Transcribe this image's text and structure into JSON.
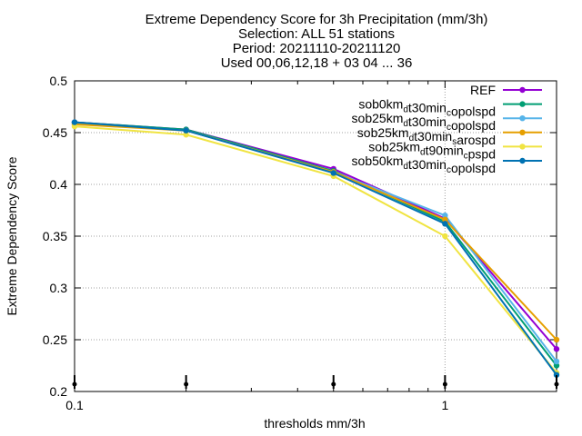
{
  "chart_data": {
    "type": "line",
    "title_lines": [
      "Extreme Dependency Score  for 3h Precipitation (mm/3h)",
      "Selection: ALL      51 stations",
      "Period: 20211110-20211120",
      "Used 00,06,12,18 + 03 04 ... 36"
    ],
    "xlabel": "thresholds mm/3h",
    "ylabel": "Extreme Dependency Score",
    "x_scale": "log",
    "xlim": [
      0.1,
      2
    ],
    "ylim": [
      0.2,
      0.5
    ],
    "x_ticks": [
      {
        "value": 0.1,
        "label": "0.1"
      },
      {
        "value": 1,
        "label": "1"
      }
    ],
    "y_ticks": [
      {
        "value": 0.2,
        "label": "0.2"
      },
      {
        "value": 0.25,
        "label": "0.25"
      },
      {
        "value": 0.3,
        "label": "0.3"
      },
      {
        "value": 0.35,
        "label": "0.35"
      },
      {
        "value": 0.4,
        "label": "0.4"
      },
      {
        "value": 0.45,
        "label": "0.45"
      },
      {
        "value": 0.5,
        "label": "0.5"
      }
    ],
    "grid": true,
    "legend_position": "top-right",
    "x": [
      0.1,
      0.2,
      0.5,
      1,
      2
    ],
    "series": [
      {
        "name": "REF",
        "name_parts": [
          [
            "REF",
            ""
          ]
        ],
        "color": "#9400d3",
        "values": [
          0.46,
          0.453,
          0.415,
          0.367,
          0.241
        ]
      },
      {
        "name": "sob0km_d t30min_c opolspd",
        "name_parts": [
          [
            "sob0km",
            ""
          ],
          [
            "d",
            "sub"
          ],
          [
            "t30min",
            ""
          ],
          [
            "c",
            "sub"
          ],
          [
            "opolspd",
            ""
          ]
        ],
        "color": "#009e73",
        "values": [
          0.46,
          0.453,
          0.413,
          0.364,
          0.225
        ]
      },
      {
        "name": "sob25km_d t30min_c opolspd",
        "name_parts": [
          [
            "sob25km",
            ""
          ],
          [
            "d",
            "sub"
          ],
          [
            "t30min",
            ""
          ],
          [
            "c",
            "sub"
          ],
          [
            "opolspd",
            ""
          ]
        ],
        "color": "#56b4e9",
        "values": [
          0.459,
          0.452,
          0.412,
          0.37,
          0.229
        ]
      },
      {
        "name": "sob25km_d t30min_s arospd",
        "name_parts": [
          [
            "sob25km",
            ""
          ],
          [
            "d",
            "sub"
          ],
          [
            "t30min",
            ""
          ],
          [
            "s",
            "sub"
          ],
          [
            "arospd",
            ""
          ]
        ],
        "color": "#e69f00",
        "values": [
          0.458,
          0.452,
          0.412,
          0.366,
          0.25
        ]
      },
      {
        "name": "sob25km_d t90min_c pspd",
        "name_parts": [
          [
            "sob25km",
            ""
          ],
          [
            "d",
            "sub"
          ],
          [
            "t90min",
            ""
          ],
          [
            "c",
            "sub"
          ],
          [
            "pspd",
            ""
          ]
        ],
        "color": "#f0e442",
        "values": [
          0.456,
          0.448,
          0.408,
          0.35,
          0.218
        ]
      },
      {
        "name": "sob50km_d t30min_c opolspd",
        "name_parts": [
          [
            "sob50km",
            ""
          ],
          [
            "d",
            "sub"
          ],
          [
            "t30min",
            ""
          ],
          [
            "c",
            "sub"
          ],
          [
            "opolspd",
            ""
          ]
        ],
        "color": "#0072b2",
        "values": [
          0.46,
          0.452,
          0.411,
          0.362,
          0.216
        ]
      }
    ],
    "bottom_markers_x": [
      0.1,
      0.2,
      0.5,
      1,
      2
    ]
  }
}
